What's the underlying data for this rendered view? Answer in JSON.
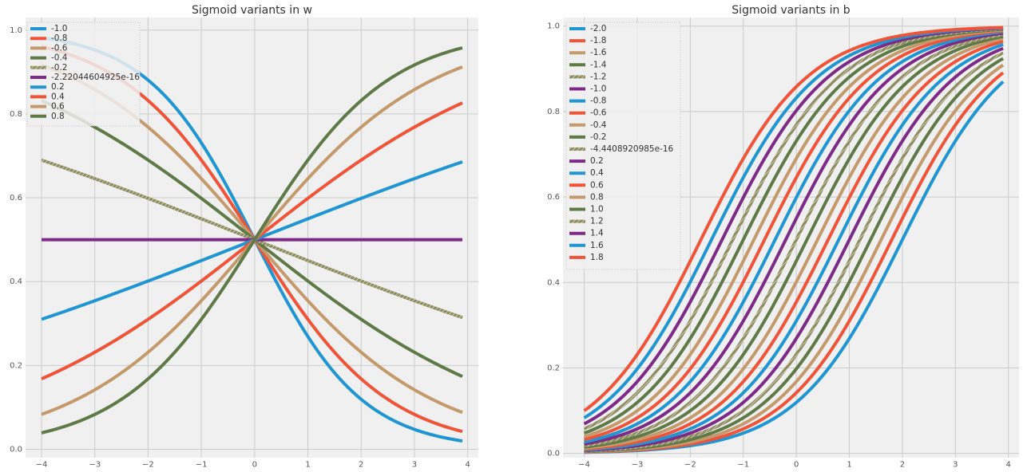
{
  "chart_data": [
    {
      "type": "line",
      "title": "Sigmoid variants in w",
      "xlabel": "",
      "ylabel": "",
      "xlim": [
        -4.3,
        4.2
      ],
      "ylim": [
        -0.02,
        1.03
      ],
      "xticks": [
        -4,
        -3,
        -2,
        -1,
        0,
        1,
        2,
        3,
        4
      ],
      "yticks": [
        0.0,
        0.2,
        0.4,
        0.6,
        0.8,
        1.0
      ],
      "grid": true,
      "legend_position": "top-left",
      "x_range": [
        -4,
        3.9
      ],
      "formula": "sigmoid(w * x)",
      "series": [
        {
          "name": "-1.0",
          "param": -1.0,
          "color": "#1f96d2",
          "hatched": false
        },
        {
          "name": "-0.8",
          "param": -0.8,
          "color": "#f05438",
          "hatched": false
        },
        {
          "name": "-0.6",
          "param": -0.6,
          "color": "#c49a6c",
          "hatched": false
        },
        {
          "name": "-0.4",
          "param": -0.4,
          "color": "#5e7a46",
          "hatched": false
        },
        {
          "name": "-0.2",
          "param": -0.2,
          "color": "#8d8c62",
          "hatched": true
        },
        {
          "name": "-2.22044604925e-16",
          "param": 0.0,
          "color": "#7e2a87",
          "hatched": false
        },
        {
          "name": "0.2",
          "param": 0.2,
          "color": "#1f96d2",
          "hatched": false
        },
        {
          "name": "0.4",
          "param": 0.4,
          "color": "#f05438",
          "hatched": false
        },
        {
          "name": "0.6",
          "param": 0.6,
          "color": "#c49a6c",
          "hatched": false
        },
        {
          "name": "0.8",
          "param": 0.8,
          "color": "#5e7a46",
          "hatched": false
        }
      ]
    },
    {
      "type": "line",
      "title": "Sigmoid variants in b",
      "xlabel": "",
      "ylabel": "",
      "xlim": [
        -4.4,
        4.2
      ],
      "ylim": [
        -0.01,
        1.02
      ],
      "xticks": [
        -4,
        -3,
        -2,
        -1,
        0,
        1,
        2,
        3,
        4
      ],
      "yticks": [
        0.0,
        0.2,
        0.4,
        0.6,
        0.8,
        1.0
      ],
      "grid": true,
      "legend_position": "top-left",
      "x_range": [
        -4,
        3.9
      ],
      "formula": "sigmoid(x + b)",
      "series": [
        {
          "name": "-2.0",
          "param": -2.0,
          "color": "#1f96d2",
          "hatched": false
        },
        {
          "name": "-1.8",
          "param": -1.8,
          "color": "#f05438",
          "hatched": false
        },
        {
          "name": "-1.6",
          "param": -1.6,
          "color": "#c49a6c",
          "hatched": false
        },
        {
          "name": "-1.4",
          "param": -1.4,
          "color": "#5e7a46",
          "hatched": false
        },
        {
          "name": "-1.2",
          "param": -1.2,
          "color": "#8d8c62",
          "hatched": true
        },
        {
          "name": "-1.0",
          "param": -1.0,
          "color": "#7e2a87",
          "hatched": false
        },
        {
          "name": "-0.8",
          "param": -0.8,
          "color": "#1f96d2",
          "hatched": false
        },
        {
          "name": "-0.6",
          "param": -0.6,
          "color": "#f05438",
          "hatched": false
        },
        {
          "name": "-0.4",
          "param": -0.4,
          "color": "#c49a6c",
          "hatched": false
        },
        {
          "name": "-0.2",
          "param": -0.2,
          "color": "#5e7a46",
          "hatched": false
        },
        {
          "name": "-4.4408920985e-16",
          "param": 0.0,
          "color": "#8d8c62",
          "hatched": true
        },
        {
          "name": "0.2",
          "param": 0.2,
          "color": "#7e2a87",
          "hatched": false
        },
        {
          "name": "0.4",
          "param": 0.4,
          "color": "#1f96d2",
          "hatched": false
        },
        {
          "name": "0.6",
          "param": 0.6,
          "color": "#f05438",
          "hatched": false
        },
        {
          "name": "0.8",
          "param": 0.8,
          "color": "#c49a6c",
          "hatched": false
        },
        {
          "name": "1.0",
          "param": 1.0,
          "color": "#5e7a46",
          "hatched": false
        },
        {
          "name": "1.2",
          "param": 1.2,
          "color": "#8d8c62",
          "hatched": true
        },
        {
          "name": "1.4",
          "param": 1.4,
          "color": "#7e2a87",
          "hatched": false
        },
        {
          "name": "1.6",
          "param": 1.6,
          "color": "#1f96d2",
          "hatched": false
        },
        {
          "name": "1.8",
          "param": 1.8,
          "color": "#f05438",
          "hatched": false
        }
      ]
    }
  ]
}
